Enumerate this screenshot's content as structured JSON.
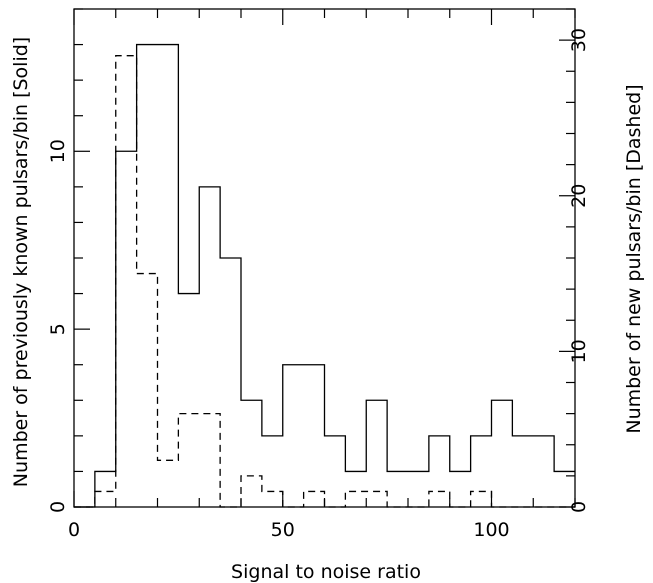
{
  "chart_data": {
    "type": "histogram",
    "xlabel": "Signal to noise ratio",
    "ylabel_left": "Number of previously known pulsars/bin [Solid]",
    "ylabel_right": "Number of new pulsars/bin [Dashed]",
    "xlim": [
      0,
      120
    ],
    "ylim_left": [
      0,
      14
    ],
    "ylim_right": [
      0,
      32
    ],
    "xticks": [
      0,
      50,
      100
    ],
    "yticks_left": [
      0,
      5,
      10
    ],
    "yticks_right": [
      0,
      10,
      20,
      30
    ],
    "bin_edges": [
      0,
      5,
      10,
      15,
      20,
      25,
      30,
      35,
      40,
      45,
      50,
      55,
      60,
      65,
      70,
      75,
      80,
      85,
      90,
      95,
      100,
      105,
      110,
      115,
      120
    ],
    "series": [
      {
        "name": "previously known",
        "style": "solid",
        "axis": "left",
        "values": [
          0,
          1,
          10,
          13,
          13,
          6,
          9,
          7,
          3,
          2,
          4,
          4,
          2,
          1,
          3,
          1,
          1,
          2,
          1,
          2,
          3,
          2,
          2,
          1
        ]
      },
      {
        "name": "new",
        "style": "dashed",
        "axis": "right",
        "values": [
          0,
          1,
          29,
          15,
          3,
          6,
          6,
          0,
          2,
          1,
          0,
          1,
          0,
          1,
          1,
          0,
          0,
          1,
          0,
          1,
          0,
          0,
          0,
          0
        ]
      }
    ]
  }
}
